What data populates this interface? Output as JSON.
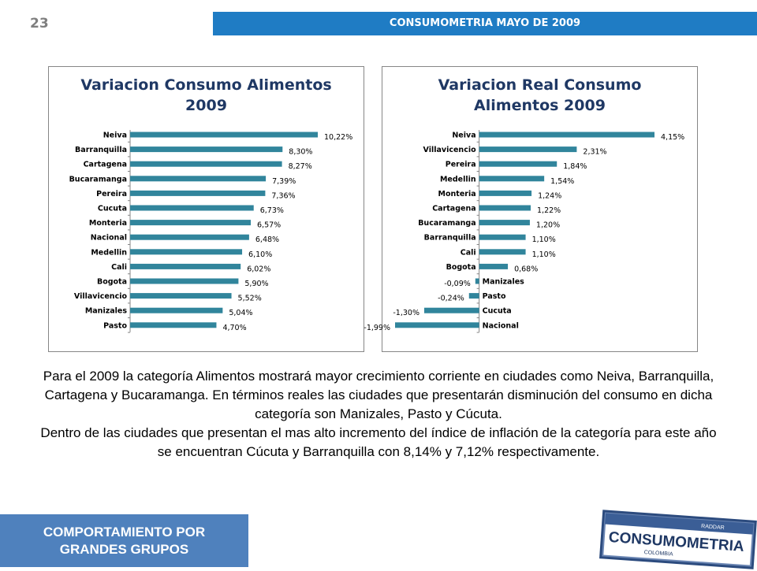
{
  "slide": {
    "page_number": "23",
    "header_title": "CONSUMOMETRIA MAYO DE 2009",
    "footer_line1": "COMPORTAMIENTO POR",
    "footer_line2": "GRANDES GRUPOS",
    "paragraph1": "Para el 2009 la categoría Alimentos mostrará mayor crecimiento corriente en ciudades como Neiva, Barranquilla, Cartagena y Bucaramanga. En términos reales las ciudades que presentarán disminución del consumo en dicha categoría son Manizales, Pasto y Cúcuta.",
    "paragraph2": "Dentro de las ciudades que presentan el mas alto incremento del índice de inflación de la categoría para este año se encuentran Cúcuta y Barranquilla con 8,14% y 7,12% respectivamente.",
    "logo_text": "CONSUMOMETRIA",
    "logo_subtext": "COLOMBIA",
    "logo_tag": "RADDAR"
  },
  "chart_data": [
    {
      "type": "bar",
      "orientation": "horizontal",
      "title_line1": "Variacion Consumo Alimentos",
      "title_line2": "2009",
      "categories": [
        "Neiva",
        "Barranquilla",
        "Cartagena",
        "Bucaramanga",
        "Pereira",
        "Cucuta",
        "Monteria",
        "Nacional",
        "Medellin",
        "Cali",
        "Bogota",
        "Villavicencio",
        "Manizales",
        "Pasto"
      ],
      "values": [
        10.22,
        8.3,
        8.27,
        7.39,
        7.36,
        6.73,
        6.57,
        6.48,
        6.1,
        6.02,
        5.9,
        5.52,
        5.04,
        4.7
      ],
      "labels": [
        "10,22%",
        "8,30%",
        "8,27%",
        "7,39%",
        "7,36%",
        "6,73%",
        "6,57%",
        "6,48%",
        "6,10%",
        "6,02%",
        "5,90%",
        "5,52%",
        "5,04%",
        "4,70%"
      ],
      "xlim": [
        0,
        10.22
      ],
      "bar_color": "#31859c",
      "grid": false,
      "legend": "none"
    },
    {
      "type": "bar",
      "orientation": "horizontal",
      "title_line1": "Variacion Real Consumo",
      "title_line2": "Alimentos 2009",
      "categories": [
        "Neiva",
        "Villavicencio",
        "Pereira",
        "Medellin",
        "Monteria",
        "Cartagena",
        "Bucaramanga",
        "Barranquilla",
        "Cali",
        "Bogota",
        "Manizales",
        "Pasto",
        "Cucuta",
        "Nacional"
      ],
      "values": [
        4.15,
        2.31,
        1.84,
        1.54,
        1.24,
        1.22,
        1.2,
        1.1,
        1.1,
        0.68,
        -0.09,
        -0.24,
        -1.3,
        -1.99
      ],
      "labels": [
        "4,15%",
        "2,31%",
        "1,84%",
        "1,54%",
        "1,24%",
        "1,22%",
        "1,20%",
        "1,10%",
        "1,10%",
        "0,68%",
        "-0,09%",
        "-0,24%",
        "-1,30%",
        "-1,99%"
      ],
      "xlim": [
        -1.99,
        4.15
      ],
      "bar_color": "#31859c",
      "grid": false,
      "legend": "none"
    }
  ]
}
